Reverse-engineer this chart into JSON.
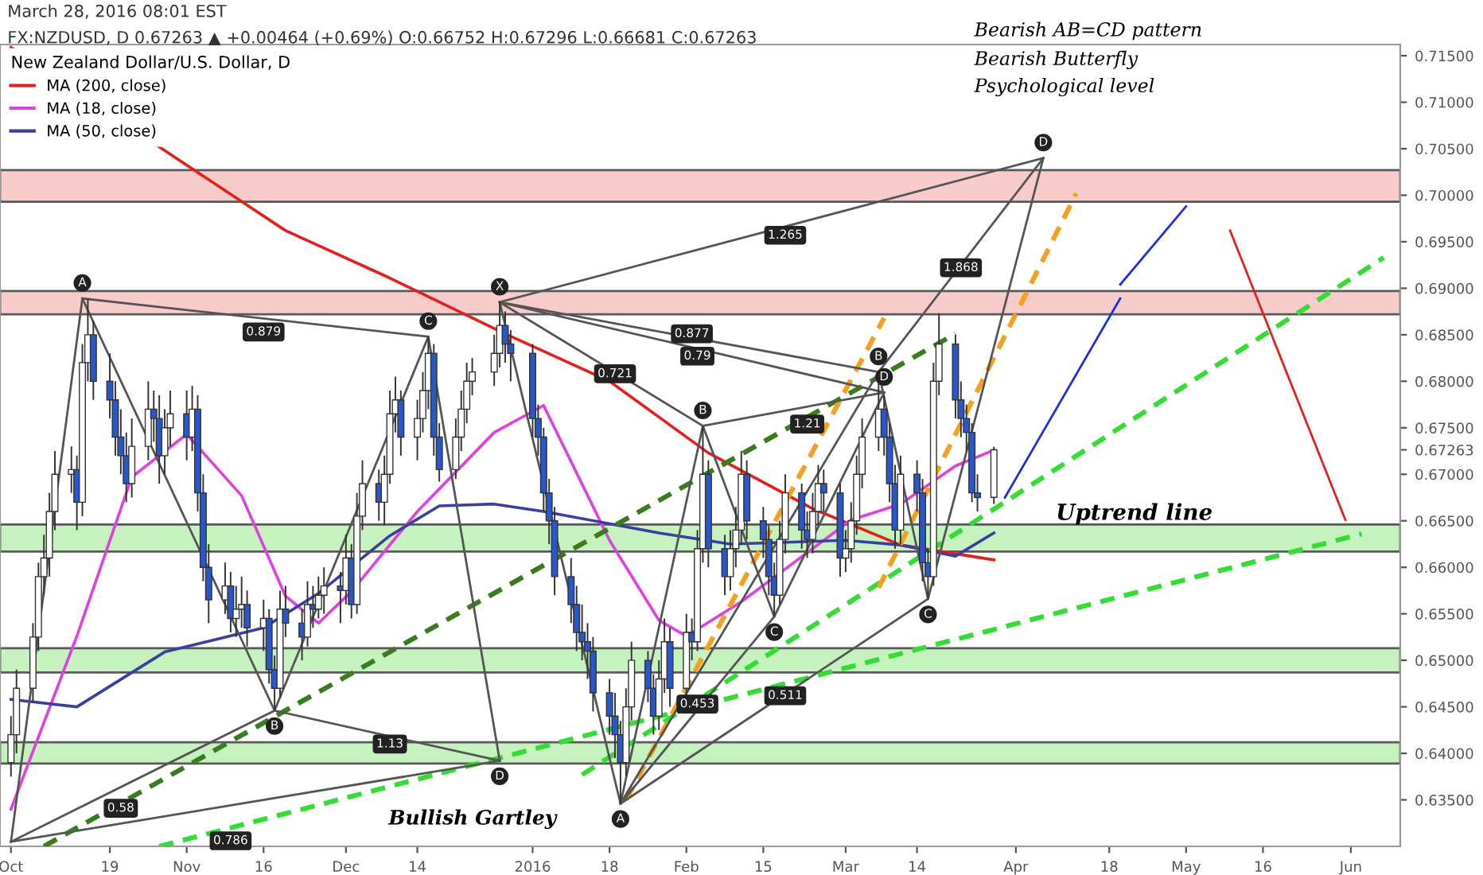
{
  "chart_data": {
    "type": "candlestick",
    "title": "March 28, 2016 08:01 EST",
    "subtitle": "FX:NZDUSD, D 0.67263 ▲ +0.00464 (+0.69%) O:0.66752 H:0.67296 L:0.66681 C:0.67263",
    "legend_title": "New Zealand Dollar/U.S. Dollar, D",
    "legend": "top left",
    "colors": [
      "#ffffff",
      "#ffffff",
      "#ffffff",
      "#ffffff",
      "#ffffff",
      "#ffffff",
      "#ffffff",
      "#ffffff",
      "#2a56c6",
      "#ffffff",
      "#ffffff",
      "#2a56c6",
      "#2a56c6",
      "#2a56c6",
      "#2a56c6",
      "#2a56c6",
      "#ffffff",
      "#ffffff",
      "#2a56c6",
      "#2a56c6",
      "#ffffff",
      "#ffffff",
      "#2a56c6",
      "#ffffff",
      "#2a56c6",
      "#2a56c6",
      "#2a56c6",
      "#ffffff",
      "#2a56c6",
      "#ffffff",
      "#ffffff",
      "#2a56c6",
      "#ffffff",
      "#2a56c6",
      "#2a56c6",
      "#ffffff",
      "#2a56c6",
      "#2a56c6",
      "#ffffff",
      "#2a56c6",
      "#ffffff",
      "#ffffff",
      "#2a56c6",
      "#ffffff",
      "#2a56c6",
      "#ffffff",
      "#ffffff",
      "#2a56c6",
      "#ffffff",
      "#ffffff",
      "#ffffff",
      "#2a56c6",
      "#ffffff",
      "#ffffff",
      "#ffffff",
      "#2a56c6",
      "#2a56c6",
      "#ffffff",
      "#ffffff",
      "#ffffff",
      "#ffffff",
      "#ffffff",
      "#ffffff",
      "#2a56c6",
      "#2a56c6",
      "#2a56c6",
      "#2a56c6",
      "#2a56c6",
      "#2a56c6",
      "#2a56c6",
      "#2a56c6",
      "#2a56c6",
      "#2a56c6",
      "#2a56c6",
      "#2a56c6",
      "#2a56c6",
      "#2a56c6",
      "#2a56c6",
      "#ffffff",
      "#ffffff",
      "#2a56c6",
      "#2a56c6",
      "#ffffff",
      "#ffffff",
      "#2a56c6",
      "#ffffff",
      "#2a56c6",
      "#ffffff",
      "#ffffff",
      "#2a56c6",
      "#2a56c6",
      "#ffffff",
      "#ffffff",
      "#ffffff",
      "#2a56c6",
      "#2a56c6",
      "#2a56c6",
      "#2a56c6",
      "#ffffff",
      "#ffffff",
      "#2a56c6",
      "#2a56c6",
      "#ffffff",
      "#ffffff",
      "#2a56c6",
      "#2a56c6",
      "#ffffff",
      "#ffffff",
      "#ffffff",
      "#ffffff",
      "#ffffff",
      "#2a56c6",
      "#2a56c6",
      "#2a56c6",
      "#ffffff",
      "#2a56c6",
      "#2a56c6",
      "#2a56c6",
      "#ffffff",
      "#ffffff",
      "#2a56c6",
      "#2a56c6",
      "#2a56c6",
      "#2a56c6",
      "#2a56c6",
      "#ffffff"
    ],
    "x": [
      "2015-10-01",
      "2015-10-02",
      "2015-10-05",
      "2015-10-06",
      "2015-10-07",
      "2015-10-08",
      "2015-10-09",
      "2015-10-12",
      "2015-10-13",
      "2015-10-14",
      "2015-10-15",
      "2015-10-16",
      "2015-10-19",
      "2015-10-20",
      "2015-10-21",
      "2015-10-22",
      "2015-10-23",
      "2015-10-26",
      "2015-10-27",
      "2015-10-28",
      "2015-10-29",
      "2015-10-30",
      "2015-11-02",
      "2015-11-03",
      "2015-11-04",
      "2015-11-05",
      "2015-11-06",
      "2015-11-09",
      "2015-11-10",
      "2015-11-11",
      "2015-11-12",
      "2015-11-13",
      "2015-11-16",
      "2015-11-17",
      "2015-11-18",
      "2015-11-19",
      "2015-11-20",
      "2015-11-23",
      "2015-11-24",
      "2015-11-25",
      "2015-11-26",
      "2015-11-27",
      "2015-11-30",
      "2015-12-01",
      "2015-12-02",
      "2015-12-03",
      "2015-12-04",
      "2015-12-07",
      "2015-12-08",
      "2015-12-09",
      "2015-12-10",
      "2015-12-11",
      "2015-12-14",
      "2015-12-15",
      "2015-12-16",
      "2015-12-17",
      "2015-12-18",
      "2015-12-21",
      "2015-12-22",
      "2015-12-23",
      "2015-12-24",
      "2015-12-28",
      "2015-12-29",
      "2015-12-30",
      "2015-12-31",
      "2016-01-04",
      "2016-01-05",
      "2016-01-06",
      "2016-01-07",
      "2016-01-08",
      "2016-01-11",
      "2016-01-12",
      "2016-01-13",
      "2016-01-14",
      "2016-01-15",
      "2016-01-18",
      "2016-01-19",
      "2016-01-20",
      "2016-01-21",
      "2016-01-22",
      "2016-01-25",
      "2016-01-26",
      "2016-01-27",
      "2016-01-28",
      "2016-01-29",
      "2016-02-01",
      "2016-02-02",
      "2016-02-03",
      "2016-02-04",
      "2016-02-05",
      "2016-02-08",
      "2016-02-09",
      "2016-02-10",
      "2016-02-11",
      "2016-02-12",
      "2016-02-15",
      "2016-02-16",
      "2016-02-17",
      "2016-02-18",
      "2016-02-19",
      "2016-02-22",
      "2016-02-23",
      "2016-02-24",
      "2016-02-25",
      "2016-02-26",
      "2016-02-29",
      "2016-03-01",
      "2016-03-02",
      "2016-03-03",
      "2016-03-04",
      "2016-03-07",
      "2016-03-08",
      "2016-03-09",
      "2016-03-10",
      "2016-03-11",
      "2016-03-14",
      "2016-03-15",
      "2016-03-16",
      "2016-03-17",
      "2016-03-18",
      "2016-03-21",
      "2016-03-22",
      "2016-03-23",
      "2016-03-24",
      "2016-03-25",
      "2016-03-28"
    ],
    "ohlc": [
      [
        0.639,
        0.644,
        0.6375,
        0.642
      ],
      [
        0.642,
        0.649,
        0.64,
        0.647
      ],
      [
        0.647,
        0.654,
        0.6455,
        0.6525
      ],
      [
        0.6525,
        0.6605,
        0.651,
        0.659
      ],
      [
        0.659,
        0.6635,
        0.657,
        0.661
      ],
      [
        0.661,
        0.668,
        0.659,
        0.666
      ],
      [
        0.666,
        0.6725,
        0.664,
        0.67
      ],
      [
        0.67,
        0.673,
        0.668,
        0.6705
      ],
      [
        0.6705,
        0.672,
        0.664,
        0.667
      ],
      [
        0.667,
        0.684,
        0.6655,
        0.682
      ],
      [
        0.682,
        0.6889,
        0.68,
        0.685
      ],
      [
        0.685,
        0.6865,
        0.678,
        0.68
      ],
      [
        0.68,
        0.683,
        0.676,
        0.678
      ],
      [
        0.678,
        0.68,
        0.672,
        0.674
      ],
      [
        0.674,
        0.677,
        0.67,
        0.672
      ],
      [
        0.672,
        0.6745,
        0.667,
        0.669
      ],
      [
        0.669,
        0.676,
        0.6675,
        0.673
      ],
      [
        0.673,
        0.68,
        0.6715,
        0.677
      ],
      [
        0.677,
        0.679,
        0.6735,
        0.676
      ],
      [
        0.676,
        0.6785,
        0.669,
        0.672
      ],
      [
        0.672,
        0.677,
        0.67,
        0.675
      ],
      [
        0.675,
        0.679,
        0.673,
        0.6765
      ],
      [
        0.6765,
        0.679,
        0.6715,
        0.674
      ],
      [
        0.674,
        0.6795,
        0.6725,
        0.677
      ],
      [
        0.677,
        0.6785,
        0.666,
        0.668
      ],
      [
        0.668,
        0.67,
        0.6585,
        0.66
      ],
      [
        0.66,
        0.6625,
        0.654,
        0.6565
      ],
      [
        0.6565,
        0.6605,
        0.655,
        0.658
      ],
      [
        0.658,
        0.6595,
        0.653,
        0.6545
      ],
      [
        0.6545,
        0.658,
        0.6525,
        0.6555
      ],
      [
        0.6555,
        0.659,
        0.6535,
        0.656
      ],
      [
        0.656,
        0.6575,
        0.6515,
        0.6535
      ],
      [
        0.6535,
        0.6565,
        0.651,
        0.6545
      ],
      [
        0.6545,
        0.6555,
        0.6475,
        0.649
      ],
      [
        0.649,
        0.6505,
        0.6446,
        0.647
      ],
      [
        0.647,
        0.6575,
        0.646,
        0.6555
      ],
      [
        0.6555,
        0.658,
        0.6525,
        0.654
      ],
      [
        0.654,
        0.6555,
        0.65,
        0.6525
      ],
      [
        0.6525,
        0.6585,
        0.6515,
        0.656
      ],
      [
        0.656,
        0.658,
        0.6535,
        0.6555
      ],
      [
        0.6555,
        0.659,
        0.6545,
        0.657
      ],
      [
        0.657,
        0.66,
        0.655,
        0.658
      ],
      [
        0.658,
        0.6595,
        0.654,
        0.6575
      ],
      [
        0.6575,
        0.6635,
        0.656,
        0.661
      ],
      [
        0.661,
        0.6625,
        0.6545,
        0.656
      ],
      [
        0.656,
        0.668,
        0.655,
        0.6655
      ],
      [
        0.6655,
        0.6715,
        0.664,
        0.669
      ],
      [
        0.669,
        0.6705,
        0.665,
        0.667
      ],
      [
        0.667,
        0.672,
        0.6645,
        0.67
      ],
      [
        0.67,
        0.679,
        0.669,
        0.6765
      ],
      [
        0.6765,
        0.6805,
        0.6745,
        0.678
      ],
      [
        0.678,
        0.679,
        0.672,
        0.674
      ],
      [
        0.674,
        0.678,
        0.6715,
        0.676
      ],
      [
        0.676,
        0.681,
        0.6745,
        0.679
      ],
      [
        0.679,
        0.6848,
        0.677,
        0.683
      ],
      [
        0.683,
        0.684,
        0.672,
        0.674
      ],
      [
        0.674,
        0.6755,
        0.6692,
        0.6705
      ],
      [
        0.6705,
        0.676,
        0.6695,
        0.674
      ],
      [
        0.674,
        0.679,
        0.6725,
        0.677
      ],
      [
        0.677,
        0.682,
        0.6755,
        0.68
      ],
      [
        0.68,
        0.6825,
        0.6785,
        0.681
      ],
      [
        0.681,
        0.685,
        0.6795,
        0.683
      ],
      [
        0.683,
        0.6885,
        0.6815,
        0.686
      ],
      [
        0.686,
        0.6875,
        0.682,
        0.684
      ],
      [
        0.684,
        0.6855,
        0.68,
        0.683
      ],
      [
        0.683,
        0.684,
        0.674,
        0.676
      ],
      [
        0.676,
        0.6775,
        0.672,
        0.674
      ],
      [
        0.674,
        0.675,
        0.666,
        0.668
      ],
      [
        0.668,
        0.6695,
        0.6625,
        0.665
      ],
      [
        0.665,
        0.6665,
        0.657,
        0.659
      ],
      [
        0.659,
        0.661,
        0.654,
        0.656
      ],
      [
        0.656,
        0.658,
        0.651,
        0.653
      ],
      [
        0.653,
        0.656,
        0.65,
        0.652
      ],
      [
        0.652,
        0.654,
        0.648,
        0.651
      ],
      [
        0.651,
        0.6525,
        0.6445,
        0.6465
      ],
      [
        0.6465,
        0.648,
        0.642,
        0.644
      ],
      [
        0.644,
        0.6465,
        0.6395,
        0.642
      ],
      [
        0.642,
        0.6435,
        0.6346,
        0.639
      ],
      [
        0.639,
        0.647,
        0.6375,
        0.645
      ],
      [
        0.645,
        0.652,
        0.6435,
        0.65
      ],
      [
        0.65,
        0.651,
        0.6455,
        0.647
      ],
      [
        0.647,
        0.6485,
        0.642,
        0.644
      ],
      [
        0.644,
        0.65,
        0.6425,
        0.648
      ],
      [
        0.648,
        0.6545,
        0.6465,
        0.652
      ],
      [
        0.652,
        0.6535,
        0.645,
        0.647
      ],
      [
        0.647,
        0.655,
        0.646,
        0.653
      ],
      [
        0.653,
        0.6545,
        0.65,
        0.652
      ],
      [
        0.652,
        0.664,
        0.651,
        0.662
      ],
      [
        0.662,
        0.6752,
        0.6605,
        0.67
      ],
      [
        0.67,
        0.6715,
        0.66,
        0.662
      ],
      [
        0.662,
        0.6635,
        0.657,
        0.659
      ],
      [
        0.659,
        0.664,
        0.6575,
        0.662
      ],
      [
        0.662,
        0.6665,
        0.66,
        0.664
      ],
      [
        0.664,
        0.6725,
        0.6625,
        0.67
      ],
      [
        0.67,
        0.6715,
        0.663,
        0.665
      ],
      [
        0.665,
        0.6665,
        0.661,
        0.663
      ],
      [
        0.663,
        0.6645,
        0.657,
        0.659
      ],
      [
        0.659,
        0.6605,
        0.6547,
        0.657
      ],
      [
        0.657,
        0.665,
        0.656,
        0.663
      ],
      [
        0.663,
        0.67,
        0.6615,
        0.668
      ],
      [
        0.668,
        0.669,
        0.662,
        0.664
      ],
      [
        0.664,
        0.666,
        0.661,
        0.663
      ],
      [
        0.663,
        0.668,
        0.6615,
        0.666
      ],
      [
        0.666,
        0.671,
        0.6645,
        0.669
      ],
      [
        0.669,
        0.6705,
        0.666,
        0.668
      ],
      [
        0.668,
        0.669,
        0.659,
        0.661
      ],
      [
        0.661,
        0.664,
        0.6595,
        0.662
      ],
      [
        0.662,
        0.667,
        0.6605,
        0.665
      ],
      [
        0.665,
        0.672,
        0.6635,
        0.67
      ],
      [
        0.67,
        0.676,
        0.6685,
        0.674
      ],
      [
        0.674,
        0.681,
        0.6725,
        0.677
      ],
      [
        0.677,
        0.6785,
        0.672,
        0.674
      ],
      [
        0.674,
        0.6755,
        0.667,
        0.669
      ],
      [
        0.669,
        0.671,
        0.662,
        0.664
      ],
      [
        0.664,
        0.672,
        0.6625,
        0.67
      ],
      [
        0.67,
        0.6715,
        0.666,
        0.668
      ],
      [
        0.668,
        0.6695,
        0.6585,
        0.6605
      ],
      [
        0.6605,
        0.662,
        0.6566,
        0.659
      ],
      [
        0.659,
        0.682,
        0.658,
        0.68
      ],
      [
        0.68,
        0.6873,
        0.6785,
        0.684
      ],
      [
        0.684,
        0.685,
        0.676,
        0.678
      ],
      [
        0.678,
        0.68,
        0.674,
        0.676
      ],
      [
        0.676,
        0.6775,
        0.6725,
        0.6745
      ],
      [
        0.6745,
        0.6755,
        0.667,
        0.668
      ],
      [
        0.668,
        0.67,
        0.666,
        0.6675
      ],
      [
        0.66752,
        0.67296,
        0.66681,
        0.67263
      ]
    ],
    "series": [
      {
        "name": "MA (200, close)",
        "type": "line",
        "color": "#e3211c",
        "x": [
          "2015-10-01",
          "2015-10-29",
          "2015-11-20",
          "2015-12-09",
          "2015-12-30",
          "2016-01-18",
          "2016-02-05",
          "2016-02-24",
          "2016-03-11",
          "2016-03-28"
        ],
        "values": [
          0.7159,
          0.7048,
          0.6962,
          0.6911,
          0.6851,
          0.68,
          0.6723,
          0.6663,
          0.6624,
          0.6608
        ]
      },
      {
        "name": "MA (18, close)",
        "type": "line",
        "color": "#e040e0",
        "x": [
          "2015-10-01",
          "2015-10-13",
          "2015-10-23",
          "2015-11-02",
          "2015-11-12",
          "2015-11-20",
          "2015-11-26",
          "2015-12-02",
          "2015-12-14",
          "2015-12-28",
          "2016-01-06",
          "2016-01-18",
          "2016-01-27",
          "2016-02-01",
          "2016-02-11",
          "2016-03-02",
          "2016-03-11",
          "2016-03-21",
          "2016-03-28"
        ],
        "values": [
          0.634,
          0.6526,
          0.6697,
          0.6743,
          0.6677,
          0.6569,
          0.654,
          0.6574,
          0.666,
          0.6745,
          0.6774,
          0.6629,
          0.6543,
          0.6526,
          0.6563,
          0.6651,
          0.6668,
          0.6709,
          0.6726
        ]
      },
      {
        "name": "MA (50, close)",
        "type": "line",
        "color": "#3b3fa0",
        "x": [
          "2015-10-01",
          "2015-10-13",
          "2015-10-29",
          "2015-11-16",
          "2015-11-26",
          "2015-12-09",
          "2015-12-18",
          "2015-12-28",
          "2016-01-06",
          "2016-01-27",
          "2016-02-09",
          "2016-03-01",
          "2016-03-11",
          "2016-03-21",
          "2016-03-28"
        ],
        "values": [
          0.6458,
          0.645,
          0.6509,
          0.6535,
          0.6572,
          0.6634,
          0.6666,
          0.6668,
          0.666,
          0.6637,
          0.6625,
          0.6629,
          0.6624,
          0.6612,
          0.6637
        ]
      },
      {
        "type": "line",
        "color": "#33dd33",
        "line_style": "dashed",
        "x": [
          "2015-10-28",
          "2016-06-03"
        ],
        "values": [
          0.63,
          0.6636
        ]
      },
      {
        "type": "line",
        "color": "#33dd33",
        "line_style": "dashed",
        "x": [
          "2016-01-13",
          "2016-06-07"
        ],
        "values": [
          0.6377,
          0.6933
        ]
      },
      {
        "type": "line",
        "color": "#3a7d1e",
        "line_style": "dashed",
        "x": [
          "2015-10-07",
          "2016-03-21"
        ],
        "values": [
          0.63,
          0.6851
        ]
      },
      {
        "type": "line",
        "color": "#f5a020",
        "line_style": "dashed",
        "x": [
          "2016-01-21",
          "2016-03-08"
        ],
        "values": [
          0.635,
          0.6868
        ]
      },
      {
        "type": "line",
        "color": "#f5a020",
        "line_style": "dashed",
        "x": [
          "2016-03-07",
          "2016-04-12"
        ],
        "values": [
          0.6578,
          0.7002
        ]
      },
      {
        "type": "line",
        "color": "#1f2ee0",
        "x": [
          "2016-03-30",
          "2016-04-20"
        ],
        "values": [
          0.6675,
          0.6889
        ]
      },
      {
        "type": "line",
        "color": "#1f2ee0",
        "x": [
          "2016-04-20",
          "2016-05-02"
        ],
        "values": [
          0.6904,
          0.6988
        ]
      },
      {
        "type": "line",
        "color": "#e3211c",
        "x": [
          "2016-05-10",
          "2016-05-31"
        ],
        "values": [
          0.6962,
          0.6651
        ]
      },
      {
        "type": "line",
        "color": "#555555",
        "x": [
          "2015-10-01",
          "2015-10-14",
          "2015-11-18",
          "2015-12-16",
          "2015-12-29"
        ],
        "values": [
          0.6305,
          0.6889,
          0.6446,
          0.6848,
          0.6392
        ]
      },
      {
        "type": "line",
        "color": "#555555",
        "x": [
          "2015-10-01",
          "2015-11-18"
        ],
        "values": [
          0.6305,
          0.6446
        ]
      },
      {
        "type": "line",
        "color": "#555555",
        "x": [
          "2015-10-14",
          "2015-12-16"
        ],
        "values": [
          0.6889,
          0.6848
        ]
      },
      {
        "type": "line",
        "color": "#555555",
        "x": [
          "2015-11-18",
          "2015-12-29"
        ],
        "values": [
          0.6446,
          0.6392
        ]
      },
      {
        "type": "line",
        "color": "#555555",
        "x": [
          "2015-10-01",
          "2015-12-29"
        ],
        "values": [
          0.6305,
          0.6392
        ]
      },
      {
        "type": "line",
        "color": "#555555",
        "x": [
          "2015-12-29",
          "2016-01-20",
          "2016-03-07",
          "2016-03-16",
          "2016-04-06"
        ],
        "values": [
          0.6885,
          0.6346,
          0.681,
          0.6566,
          0.704
        ]
      },
      {
        "type": "line",
        "color": "#555555",
        "x": [
          "2015-12-29",
          "2016-03-07"
        ],
        "values": [
          0.6885,
          0.681
        ]
      },
      {
        "type": "line",
        "color": "#555555",
        "x": [
          "2016-01-20",
          "2016-03-16"
        ],
        "values": [
          0.6346,
          0.6566
        ]
      },
      {
        "type": "line",
        "color": "#555555",
        "x": [
          "2016-03-07",
          "2016-04-06"
        ],
        "values": [
          0.681,
          0.704
        ]
      },
      {
        "type": "line",
        "color": "#555555",
        "x": [
          "2015-12-29",
          "2016-04-06"
        ],
        "values": [
          0.6885,
          0.704
        ]
      },
      {
        "type": "line",
        "color": "#555555",
        "x": [
          "2016-01-20",
          "2016-02-04",
          "2016-02-17",
          "2016-03-08"
        ],
        "values": [
          0.6346,
          0.6752,
          0.6547,
          0.6788
        ]
      },
      {
        "type": "line",
        "color": "#555555",
        "x": [
          "2015-12-29",
          "2016-02-04"
        ],
        "values": [
          0.6885,
          0.6752
        ]
      },
      {
        "type": "line",
        "color": "#555555",
        "x": [
          "2015-12-29",
          "2016-03-08"
        ],
        "values": [
          0.6885,
          0.6788
        ]
      },
      {
        "type": "line",
        "color": "#555555",
        "x": [
          "2016-01-20",
          "2016-02-17"
        ],
        "values": [
          0.6346,
          0.6547
        ]
      },
      {
        "type": "line",
        "color": "#555555",
        "x": [
          "2016-02-04",
          "2016-03-08"
        ],
        "values": [
          0.6752,
          0.6788
        ]
      }
    ],
    "bands": [
      {
        "axis": "y",
        "from": 0.6872,
        "to": 0.6897,
        "color": "#f7bcbc"
      },
      {
        "axis": "y",
        "from": 0.6993,
        "to": 0.7027,
        "color": "#f7bcbc"
      },
      {
        "axis": "y",
        "from": 0.6617,
        "to": 0.6646,
        "color": "#b4eeac"
      },
      {
        "axis": "y",
        "from": 0.6487,
        "to": 0.6513,
        "color": "#b4eeac"
      },
      {
        "axis": "y",
        "from": 0.6389,
        "to": 0.6412,
        "color": "#b4eeac"
      }
    ],
    "annotations": [
      "Bearish AB=CD pattern",
      "Bearish Butterfly",
      "Psychological level",
      "Uptrend line",
      "Bullish Gartley",
      {
        "text": "A",
        "x": "2015-10-14",
        "y": 0.6889
      },
      {
        "text": "B",
        "x": "2015-11-18",
        "y": 0.6446
      },
      {
        "text": "C",
        "x": "2015-12-16",
        "y": 0.6848
      },
      {
        "text": "D",
        "x": "2015-12-29",
        "y": 0.6392
      },
      {
        "text": "X",
        "x": "2015-12-29",
        "y": 0.6885
      },
      {
        "text": "A",
        "x": "2016-01-20",
        "y": 0.6346
      },
      {
        "text": "B",
        "x": "2016-02-04",
        "y": 0.6752
      },
      {
        "text": "C",
        "x": "2016-02-17",
        "y": 0.6547
      },
      {
        "text": "B",
        "x": "2016-03-07",
        "y": 0.681
      },
      {
        "text": "D",
        "x": "2016-03-08",
        "y": 0.6788
      },
      {
        "text": "C",
        "x": "2016-03-16",
        "y": 0.6566
      },
      {
        "text": "D",
        "x": "2016-04-06",
        "y": 0.704
      },
      {
        "text": "0.879",
        "x": "2015-11-16",
        "y": 0.6853
      },
      {
        "text": "0.58",
        "x": "2015-10-21",
        "y": 0.6341
      },
      {
        "text": "0.786",
        "x": "2015-11-10",
        "y": 0.6306
      },
      {
        "text": "1.13",
        "x": "2015-12-09",
        "y": 0.641
      },
      {
        "text": "1.265",
        "x": "2016-02-19",
        "y": 0.6957
      },
      {
        "text": "1.868",
        "x": "2016-03-22",
        "y": 0.6922
      },
      {
        "text": "0.877",
        "x": "2016-02-02",
        "y": 0.6851
      },
      {
        "text": "0.79",
        "x": "2016-02-03",
        "y": 0.6827
      },
      {
        "text": "0.721",
        "x": "2016-01-19",
        "y": 0.6808
      },
      {
        "text": "1.21",
        "x": "2016-02-23",
        "y": 0.6754
      },
      {
        "text": "0.453",
        "x": "2016-02-03",
        "y": 0.6453
      },
      {
        "text": "0.511",
        "x": "2016-02-19",
        "y": 0.6462
      }
    ],
    "xlim": [
      "2015-09-29",
      "2016-06-10"
    ],
    "ylim": [
      0.63,
      0.7162
    ],
    "xticks": [
      {
        "value": "2015-10-01",
        "label": "Oct"
      },
      {
        "value": "2015-10-19",
        "label": "19"
      },
      {
        "value": "2015-11-02",
        "label": "Nov"
      },
      {
        "value": "2015-11-16",
        "label": "16"
      },
      {
        "value": "2015-12-01",
        "label": "Dec"
      },
      {
        "value": "2015-12-14",
        "label": "14"
      },
      {
        "value": "2016-01-04",
        "label": "2016"
      },
      {
        "value": "2016-01-18",
        "label": "18"
      },
      {
        "value": "2016-02-01",
        "label": "Feb"
      },
      {
        "value": "2016-02-15",
        "label": "15"
      },
      {
        "value": "2016-03-01",
        "label": "Mar"
      },
      {
        "value": "2016-03-14",
        "label": "14"
      },
      {
        "value": "2016-04-01",
        "label": "Apr"
      },
      {
        "value": "2016-04-18",
        "label": "18"
      },
      {
        "value": "2016-05-02",
        "label": "May"
      },
      {
        "value": "2016-05-16",
        "label": "16"
      },
      {
        "value": "2016-06-01",
        "label": "Jun"
      }
    ],
    "yticks": [
      {
        "value": 0.635,
        "label": "0.63500"
      },
      {
        "value": 0.64,
        "label": "0.64000"
      },
      {
        "value": 0.645,
        "label": "0.64500"
      },
      {
        "value": 0.65,
        "label": "0.65000"
      },
      {
        "value": 0.655,
        "label": "0.65500"
      },
      {
        "value": 0.66,
        "label": "0.66000"
      },
      {
        "value": 0.665,
        "label": "0.66500"
      },
      {
        "value": 0.67,
        "label": "0.67000"
      },
      {
        "value": 0.67263,
        "label": "0.67263"
      },
      {
        "value": 0.675,
        "label": "0.67500"
      },
      {
        "value": 0.68,
        "label": "0.68000"
      },
      {
        "value": 0.685,
        "label": "0.68500"
      },
      {
        "value": 0.69,
        "label": "0.69000"
      },
      {
        "value": 0.695,
        "label": "0.69500"
      },
      {
        "value": 0.7,
        "label": "0.70000"
      },
      {
        "value": 0.705,
        "label": "0.70500"
      },
      {
        "value": 0.71,
        "label": "0.71000"
      },
      {
        "value": 0.715,
        "label": "0.71500"
      }
    ]
  }
}
